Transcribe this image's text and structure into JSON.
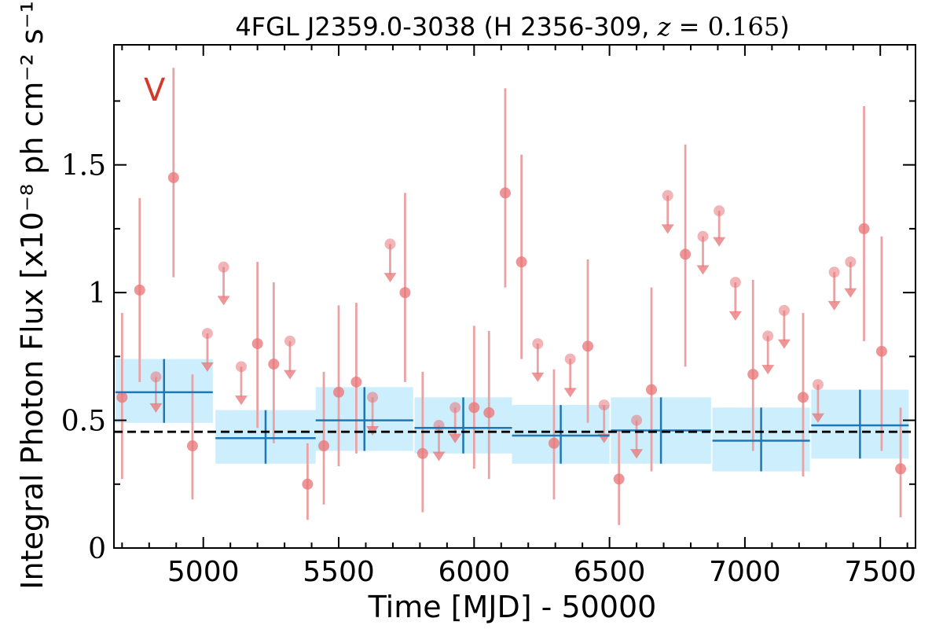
{
  "chart_data": {
    "type": "scatter",
    "title": "4FGL J2359.0-3038 (H 2356-309, z = 0.165)",
    "title_parts": {
      "prefix": "4FGL J2359.0-3038 (H 2356-309, ",
      "z_var": "z",
      "z_eq": " = ",
      "z_val": "0.165",
      "suffix": ")"
    },
    "band_label": "V",
    "xlabel": "Time [MJD] - 50000",
    "ylabel": "Integral Photon Flux [x10⁻⁸ ph cm⁻² s⁻¹]",
    "xlim": [
      4670,
      7630
    ],
    "ylim": [
      0,
      1.97
    ],
    "xticks": [
      5000,
      5500,
      6000,
      6500,
      7000,
      7500
    ],
    "xtick_labels": [
      "5000",
      "5500",
      "6000",
      "6500",
      "7000",
      "7500"
    ],
    "yticks": [
      0,
      0.5,
      1,
      1.5
    ],
    "ytick_labels": [
      "0",
      "0.5",
      "1",
      "1.5"
    ],
    "reference_level": 0.455,
    "colors": {
      "points": "#e8777a",
      "errorbars": "#eaa3a5",
      "bins": "#1f77b4",
      "bin_band": "#cdeefc",
      "band_label": "#d33a2c",
      "reference_line": "#000000"
    },
    "binned_series": [
      {
        "x": 4855,
        "xerr": 180,
        "y": 0.61,
        "ylo": 0.49,
        "yhi": 0.74
      },
      {
        "x": 5230,
        "xerr": 185,
        "y": 0.43,
        "ylo": 0.33,
        "yhi": 0.54
      },
      {
        "x": 5595,
        "xerr": 180,
        "y": 0.5,
        "ylo": 0.38,
        "yhi": 0.63
      },
      {
        "x": 5960,
        "xerr": 180,
        "y": 0.47,
        "ylo": 0.37,
        "yhi": 0.59
      },
      {
        "x": 6320,
        "xerr": 180,
        "y": 0.44,
        "ylo": 0.33,
        "yhi": 0.56
      },
      {
        "x": 6690,
        "xerr": 185,
        "y": 0.46,
        "ylo": 0.33,
        "yhi": 0.59
      },
      {
        "x": 7060,
        "xerr": 180,
        "y": 0.42,
        "ylo": 0.3,
        "yhi": 0.55
      },
      {
        "x": 7425,
        "xerr": 180,
        "y": 0.48,
        "ylo": 0.35,
        "yhi": 0.62
      }
    ],
    "detections": [
      {
        "x": 4700,
        "y": 0.59,
        "ylo": 0.27,
        "yhi": 0.92
      },
      {
        "x": 4765,
        "y": 1.01,
        "ylo": 0.65,
        "yhi": 1.37
      },
      {
        "x": 4890,
        "y": 1.45,
        "ylo": 1.06,
        "yhi": 1.88
      },
      {
        "x": 4960,
        "y": 0.4,
        "ylo": 0.19,
        "yhi": 0.68
      },
      {
        "x": 5200,
        "y": 0.8,
        "ylo": 0.47,
        "yhi": 1.12
      },
      {
        "x": 5260,
        "y": 0.72,
        "ylo": 0.41,
        "yhi": 1.04
      },
      {
        "x": 5385,
        "y": 0.25,
        "ylo": 0.11,
        "yhi": 0.41
      },
      {
        "x": 5445,
        "y": 0.4,
        "ylo": 0.17,
        "yhi": 0.69
      },
      {
        "x": 5500,
        "y": 0.61,
        "ylo": 0.32,
        "yhi": 0.95
      },
      {
        "x": 5565,
        "y": 0.65,
        "ylo": 0.37,
        "yhi": 0.96
      },
      {
        "x": 5745,
        "y": 1.0,
        "ylo": 0.65,
        "yhi": 1.39
      },
      {
        "x": 5810,
        "y": 0.37,
        "ylo": 0.14,
        "yhi": 0.69
      },
      {
        "x": 6000,
        "y": 0.55,
        "ylo": 0.31,
        "yhi": 0.87
      },
      {
        "x": 6055,
        "y": 0.53,
        "ylo": 0.27,
        "yhi": 0.85
      },
      {
        "x": 6115,
        "y": 1.39,
        "ylo": 1.02,
        "yhi": 1.8
      },
      {
        "x": 6175,
        "y": 1.12,
        "ylo": 0.74,
        "yhi": 1.54
      },
      {
        "x": 6295,
        "y": 0.41,
        "ylo": 0.19,
        "yhi": 0.7
      },
      {
        "x": 6420,
        "y": 0.79,
        "ylo": 0.49,
        "yhi": 1.13
      },
      {
        "x": 6535,
        "y": 0.27,
        "ylo": 0.09,
        "yhi": 0.46
      },
      {
        "x": 6655,
        "y": 0.62,
        "ylo": 0.3,
        "yhi": 1.02
      },
      {
        "x": 6780,
        "y": 1.15,
        "ylo": 0.71,
        "yhi": 1.58
      },
      {
        "x": 7030,
        "y": 0.68,
        "ylo": 0.38,
        "yhi": 1.05
      },
      {
        "x": 7215,
        "y": 0.59,
        "ylo": 0.28,
        "yhi": 0.92
      },
      {
        "x": 7440,
        "y": 1.25,
        "ylo": 0.81,
        "yhi": 1.73
      },
      {
        "x": 7505,
        "y": 0.77,
        "ylo": 0.38,
        "yhi": 1.22
      },
      {
        "x": 7575,
        "y": 0.31,
        "ylo": 0.12,
        "yhi": 0.55
      }
    ],
    "upper_limits": [
      {
        "x": 4825,
        "y": 0.67,
        "tip": 0.53
      },
      {
        "x": 5015,
        "y": 0.84,
        "tip": 0.69
      },
      {
        "x": 5075,
        "y": 1.1,
        "tip": 0.95
      },
      {
        "x": 5140,
        "y": 0.71,
        "tip": 0.56
      },
      {
        "x": 5320,
        "y": 0.81,
        "tip": 0.66
      },
      {
        "x": 5625,
        "y": 0.59,
        "tip": 0.44
      },
      {
        "x": 5690,
        "y": 1.19,
        "tip": 1.04
      },
      {
        "x": 5870,
        "y": 0.48,
        "tip": 0.34
      },
      {
        "x": 5930,
        "y": 0.55,
        "tip": 0.41
      },
      {
        "x": 6235,
        "y": 0.8,
        "tip": 0.65
      },
      {
        "x": 6355,
        "y": 0.74,
        "tip": 0.59
      },
      {
        "x": 6480,
        "y": 0.56,
        "tip": 0.41
      },
      {
        "x": 6600,
        "y": 0.5,
        "tip": 0.35
      },
      {
        "x": 6715,
        "y": 1.38,
        "tip": 1.23
      },
      {
        "x": 6845,
        "y": 1.22,
        "tip": 1.07
      },
      {
        "x": 6905,
        "y": 1.32,
        "tip": 1.18
      },
      {
        "x": 6965,
        "y": 1.04,
        "tip": 0.89
      },
      {
        "x": 7085,
        "y": 0.83,
        "tip": 0.68
      },
      {
        "x": 7145,
        "y": 0.93,
        "tip": 0.78
      },
      {
        "x": 7270,
        "y": 0.64,
        "tip": 0.49
      },
      {
        "x": 7330,
        "y": 1.08,
        "tip": 0.93
      },
      {
        "x": 7390,
        "y": 1.12,
        "tip": 0.98
      }
    ]
  }
}
